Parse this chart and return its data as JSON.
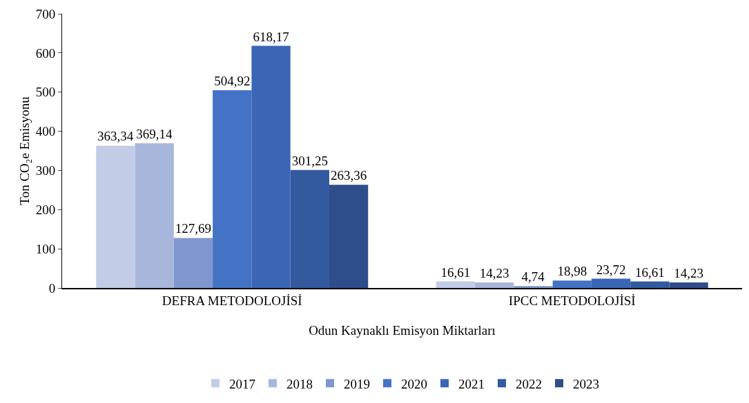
{
  "chart_data": {
    "type": "bar",
    "xlabel": "Odun Kaynaklı Emisyon Miktarları",
    "ylabel": "Ton CO₂e Emisyonu",
    "categories": [
      "DEFRA METODOLOJİSİ",
      "IPCC METODOLOJİSİ"
    ],
    "series": [
      {
        "name": "2017",
        "color": "#c3cce6",
        "values": [
          363.34,
          16.61
        ],
        "value_labels": [
          "363,34",
          "16,61"
        ]
      },
      {
        "name": "2018",
        "color": "#a9b6dc",
        "values": [
          369.14,
          14.23
        ],
        "value_labels": [
          "369,14",
          "14,23"
        ]
      },
      {
        "name": "2019",
        "color": "#8096cf",
        "values": [
          127.69,
          4.74
        ],
        "value_labels": [
          "127,69",
          "4,74"
        ]
      },
      {
        "name": "2020",
        "color": "#4472c4",
        "values": [
          504.92,
          18.98
        ],
        "value_labels": [
          "504,92",
          "18,98"
        ]
      },
      {
        "name": "2021",
        "color": "#3a66b5",
        "values": [
          618.17,
          23.72
        ],
        "value_labels": [
          "618,17",
          "23,72"
        ]
      },
      {
        "name": "2022",
        "color": "#335a9e",
        "values": [
          301.25,
          16.61
        ],
        "value_labels": [
          "301,25",
          "16,61"
        ]
      },
      {
        "name": "2023",
        "color": "#2e4d8a",
        "values": [
          263.36,
          14.23
        ],
        "value_labels": [
          "263,36",
          "14,23"
        ]
      }
    ],
    "ylim": [
      0,
      700
    ],
    "yticks": [
      0,
      100,
      200,
      300,
      400,
      500,
      600,
      700
    ],
    "grid": false,
    "legend": "bottom"
  }
}
